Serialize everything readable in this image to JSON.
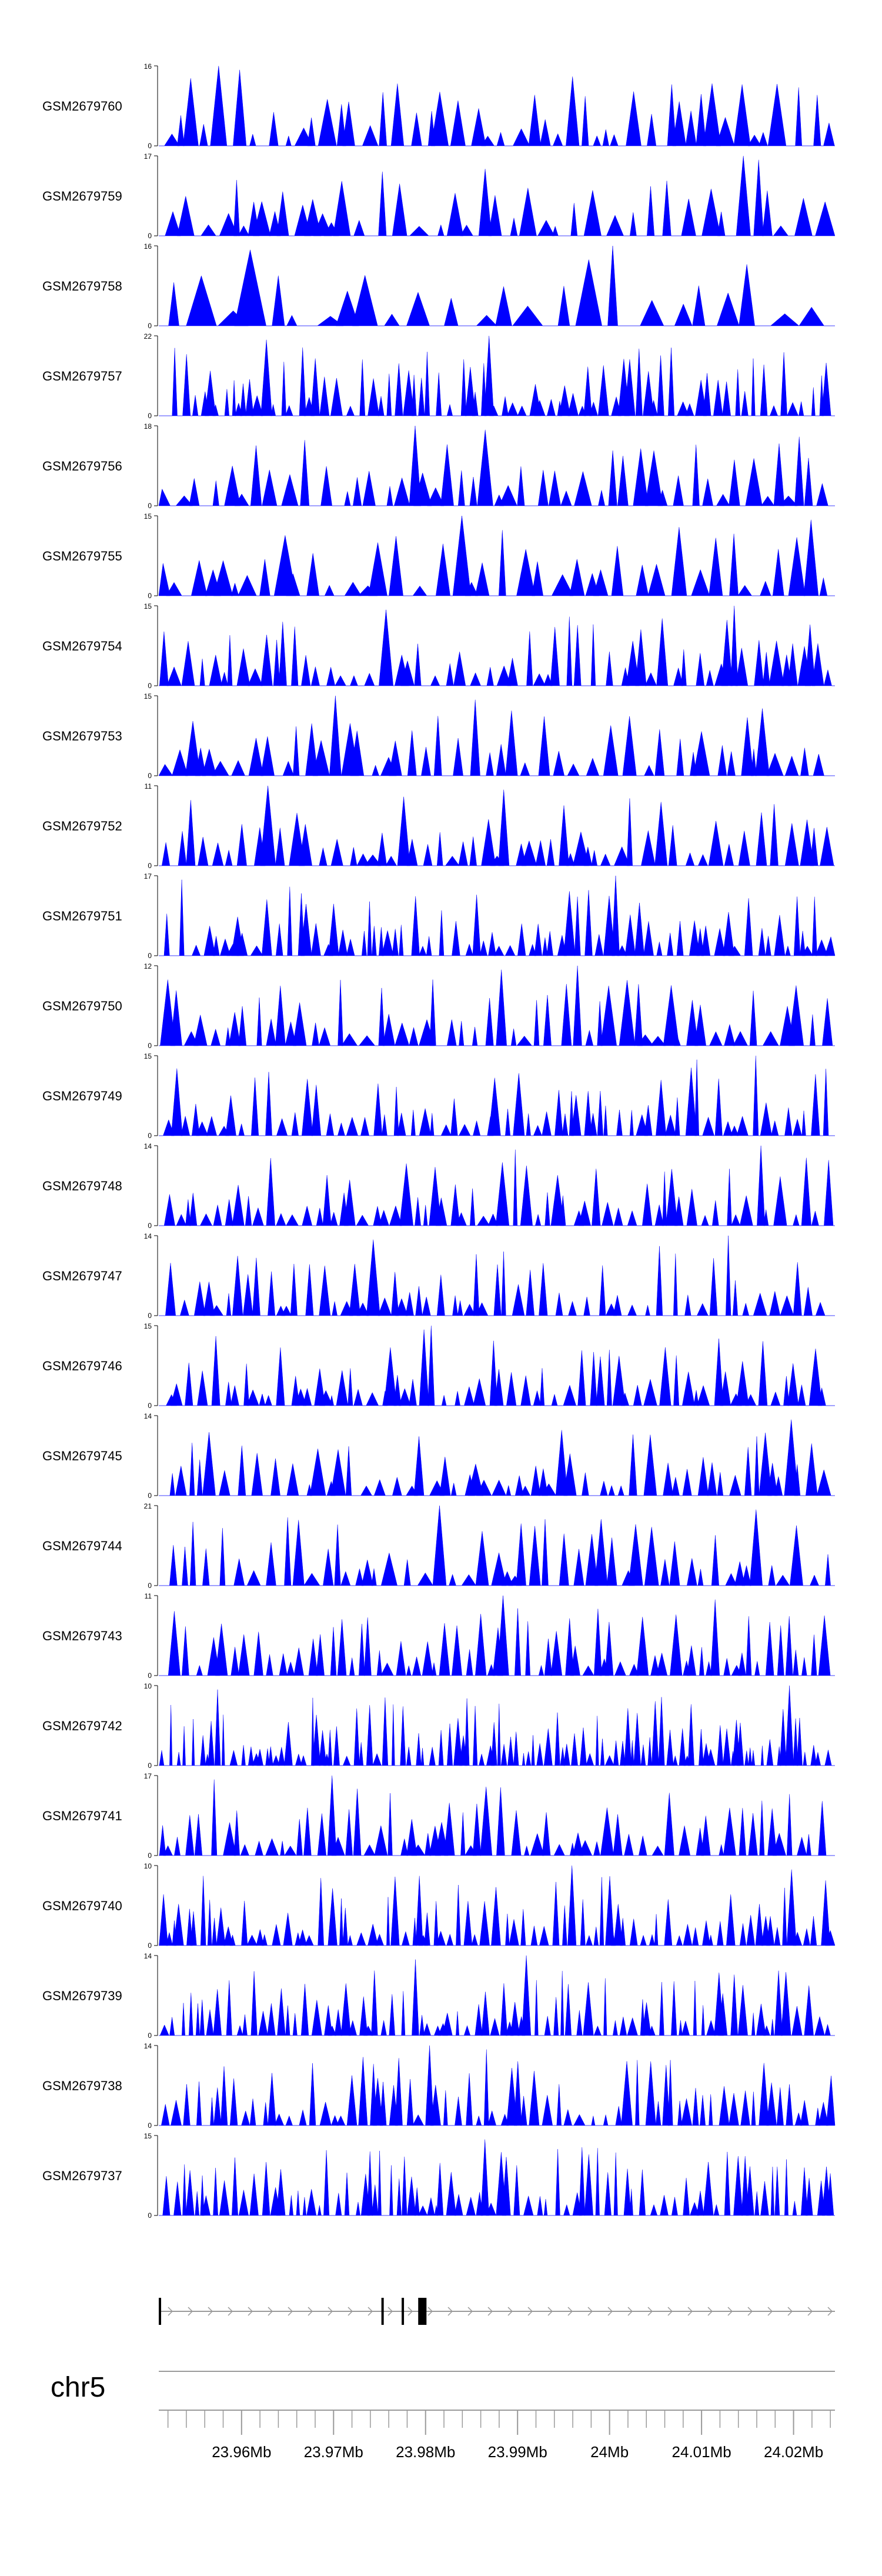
{
  "chart_data": {
    "type": "area",
    "description_color": "#0000ff",
    "x_range_mb": [
      23.951,
      24.0245
    ],
    "chromosome": "chr5",
    "x_axis_ticks": [
      "23.96Mb",
      "23.97Mb",
      "23.98Mb",
      "23.99Mb",
      "24Mb",
      "24.01Mb",
      "24.02Mb"
    ],
    "x_axis_tick_values": [
      23.96,
      23.97,
      23.98,
      23.99,
      24.0,
      24.01,
      24.02
    ],
    "series": [
      {
        "name": "GSM2679760",
        "ymin": 0,
        "ymax": 16,
        "peak_count": 62
      },
      {
        "name": "GSM2679759",
        "ymin": 0,
        "ymax": 17,
        "peak_count": 58
      },
      {
        "name": "GSM2679758",
        "ymin": 0,
        "ymax": 16,
        "peak_count": 34
      },
      {
        "name": "GSM2679757",
        "ymin": 0,
        "ymax": 22,
        "peak_count": 96
      },
      {
        "name": "GSM2679756",
        "ymin": 0,
        "ymax": 18,
        "peak_count": 60
      },
      {
        "name": "GSM2679755",
        "ymin": 0,
        "ymax": 15,
        "peak_count": 52
      },
      {
        "name": "GSM2679754",
        "ymin": 0,
        "ymax": 15,
        "peak_count": 76
      },
      {
        "name": "GSM2679753",
        "ymin": 0,
        "ymax": 15,
        "peak_count": 64
      },
      {
        "name": "GSM2679752",
        "ymin": 0,
        "ymax": 11,
        "peak_count": 70
      },
      {
        "name": "GSM2679751",
        "ymin": 0,
        "ymax": 17,
        "peak_count": 90
      },
      {
        "name": "GSM2679750",
        "ymin": 0,
        "ymax": 12,
        "peak_count": 70
      },
      {
        "name": "GSM2679749",
        "ymin": 0,
        "ymax": 15,
        "peak_count": 96
      },
      {
        "name": "GSM2679748",
        "ymin": 0,
        "ymax": 14,
        "peak_count": 84
      },
      {
        "name": "GSM2679747",
        "ymin": 0,
        "ymax": 14,
        "peak_count": 84
      },
      {
        "name": "GSM2679746",
        "ymin": 0,
        "ymax": 15,
        "peak_count": 84
      },
      {
        "name": "GSM2679745",
        "ymin": 0,
        "ymax": 14,
        "peak_count": 72
      },
      {
        "name": "GSM2679744",
        "ymin": 0,
        "ymax": 21,
        "peak_count": 70
      },
      {
        "name": "GSM2679743",
        "ymin": 0,
        "ymax": 11,
        "peak_count": 90
      },
      {
        "name": "GSM2679742",
        "ymin": 0,
        "ymax": 10,
        "peak_count": 130
      },
      {
        "name": "GSM2679741",
        "ymin": 0,
        "ymax": 17,
        "peak_count": 84
      },
      {
        "name": "GSM2679740",
        "ymin": 0,
        "ymax": 10,
        "peak_count": 110
      },
      {
        "name": "GSM2679739",
        "ymin": 0,
        "ymax": 14,
        "peak_count": 110
      },
      {
        "name": "GSM2679738",
        "ymin": 0,
        "ymax": 14,
        "peak_count": 96
      },
      {
        "name": "GSM2679737",
        "ymin": 0,
        "ymax": 15,
        "peak_count": 110
      }
    ],
    "gene_model": {
      "strand": "+",
      "exons_mb": [
        [
          23.951,
          23.9512
        ],
        [
          23.9752,
          23.9754
        ],
        [
          23.9774,
          23.9776
        ],
        [
          23.9792,
          23.9801
        ]
      ]
    },
    "grid": false,
    "legend": "none"
  },
  "colors": {
    "signal": "#0000ff",
    "axis": "#000000",
    "gene": "#000000",
    "chevron": "#9a9a9a",
    "ideogram": "#9a9a9a"
  }
}
